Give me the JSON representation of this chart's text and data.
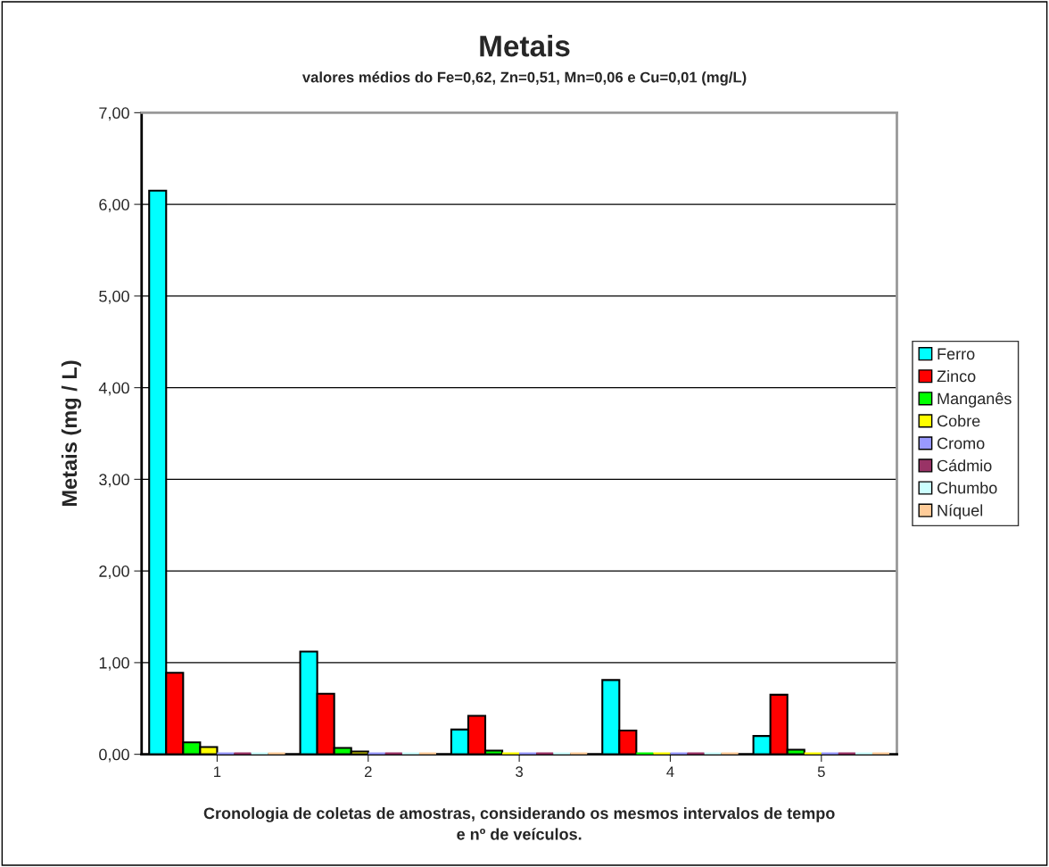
{
  "chart_data": {
    "type": "bar",
    "title": "Metais",
    "subtitle": "valores médios do Fe=0,62, Zn=0,51, Mn=0,06 e Cu=0,01 (mg/L)",
    "xlabel": "Cronologia de coletas de amostras, considerando os mesmos intervalos de tempo\ne nº de veículos.",
    "ylabel": "Metais (mg / L)",
    "categories": [
      "1",
      "2",
      "3",
      "4",
      "5"
    ],
    "series": [
      {
        "name": "Ferro",
        "color": "#00ffff",
        "values": [
          6.15,
          1.12,
          0.27,
          0.81,
          0.2
        ]
      },
      {
        "name": "Zinco",
        "color": "#ff0000",
        "values": [
          0.89,
          0.66,
          0.42,
          0.26,
          0.65
        ]
      },
      {
        "name": "Manganês",
        "color": "#00ff00",
        "values": [
          0.13,
          0.07,
          0.04,
          0,
          0.05
        ]
      },
      {
        "name": "Cobre",
        "color": "#ffff00",
        "values": [
          0.08,
          0.03,
          0,
          0,
          0
        ]
      },
      {
        "name": "Cromo",
        "color": "#9999ff",
        "values": [
          0,
          0,
          0,
          0,
          0
        ]
      },
      {
        "name": "Cádmio",
        "color": "#993366",
        "values": [
          0,
          0,
          0,
          0,
          0
        ]
      },
      {
        "name": "Chumbo",
        "color": "#ccffff",
        "values": [
          0,
          0,
          0,
          0,
          0
        ]
      },
      {
        "name": "Níquel",
        "color": "#ffcc99",
        "values": [
          0,
          0,
          0,
          0,
          0
        ]
      }
    ],
    "ylim": [
      0,
      7
    ],
    "yticks": [
      {
        "value": 0,
        "label": "0,00"
      },
      {
        "value": 1,
        "label": "1,00"
      },
      {
        "value": 2,
        "label": "2,00"
      },
      {
        "value": 3,
        "label": "3,00"
      },
      {
        "value": 4,
        "label": "4,00"
      },
      {
        "value": 5,
        "label": "5,00"
      },
      {
        "value": 6,
        "label": "6,00"
      },
      {
        "value": 7,
        "label": "7,00"
      }
    ],
    "grid": "y",
    "legend": "right"
  }
}
